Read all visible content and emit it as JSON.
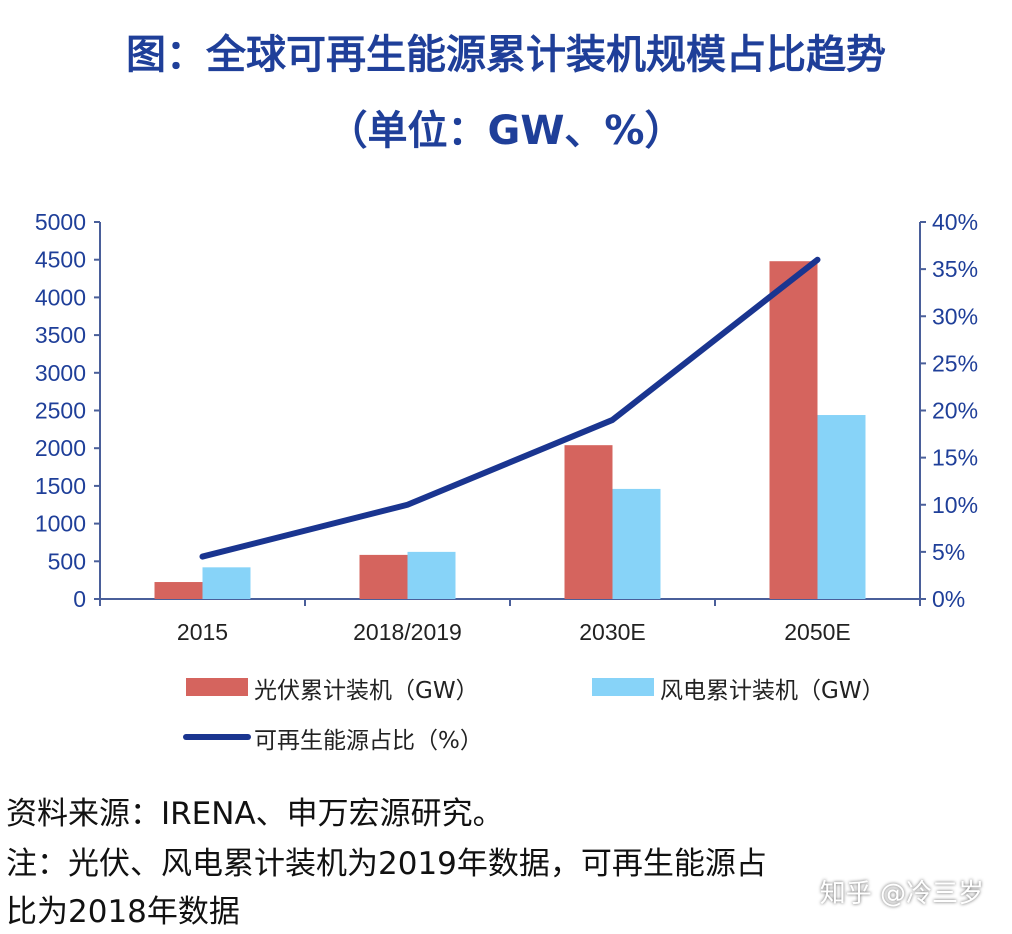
{
  "title_line1": "图：全球可再生能源累计装机规模占比趋势",
  "title_line2": "（单位：GW、%）",
  "chart_data": {
    "type": "bar",
    "categories": [
      "2015",
      "2018/2019",
      "2030E",
      "2050E"
    ],
    "left_axis": {
      "range": [
        0,
        5000
      ],
      "ticks": [
        "0",
        "500",
        "1000",
        "1500",
        "2000",
        "2500",
        "3000",
        "3500",
        "4000",
        "4500",
        "5000"
      ]
    },
    "right_axis": {
      "range": [
        0,
        40
      ],
      "ticks": [
        "0%",
        "5%",
        "10%",
        "15%",
        "20%",
        "25%",
        "30%",
        "35%",
        "40%"
      ]
    },
    "series": [
      {
        "name": "光伏累计装机（GW）",
        "type": "bar",
        "axis": "left",
        "color": "#d5645e",
        "values": [
          225,
          585,
          2040,
          4480
        ]
      },
      {
        "name": "风电累计装机（GW）",
        "type": "bar",
        "axis": "left",
        "color": "#87d3f8",
        "values": [
          420,
          625,
          1460,
          2440
        ]
      },
      {
        "name": "可再生能源占比（%）",
        "type": "line",
        "axis": "right",
        "color": "#1a3590",
        "values": [
          4.5,
          10,
          19,
          36
        ]
      }
    ],
    "grid": false,
    "legend": "bottom"
  },
  "footnote_line1": "资料来源：IRENA、申万宏源研究。",
  "footnote_line2": "注：光伏、风电累计装机为2019年数据，可再生能源占",
  "footnote_line3": "比为2018年数据",
  "watermark": "知乎 @冷三岁"
}
